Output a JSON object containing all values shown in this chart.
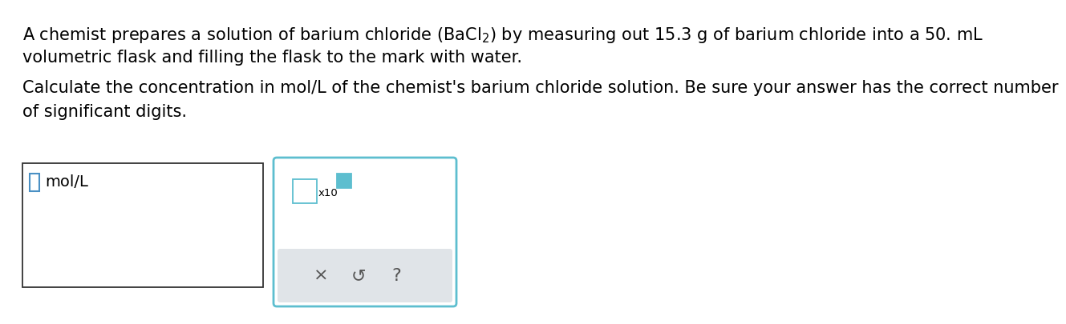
{
  "bg_color": "#ffffff",
  "text_color": "#000000",
  "line1": "A chemist prepares a solution of barium chloride $\\left(\\mathregular{BaCl_2}\\right)$ by measuring out 15.3 g of barium chloride into a 50. mL",
  "line2": "volumetric flask and filling the flask to the mark with water.",
  "line3": "Calculate the concentration in mol/L of the chemist's barium chloride solution. Be sure your answer has the correct number",
  "line4": "of significant digits.",
  "mol_label": "mol/L",
  "x10_label": "x10",
  "cross_sym": "×",
  "undo_sym": "↺",
  "question_sym": "?",
  "right_panel_border_color": "#5dbecf",
  "right_panel_bg": "#ffffff",
  "bottom_panel_bg": "#e0e4e8",
  "left_input_border": "#333333",
  "small_box_color": "#4a90c4",
  "exp_box_color": "#5dbecf",
  "font_size_main": 15.0,
  "font_size_label": 14.0,
  "font_size_x10": 9.5,
  "font_size_sym": 16
}
